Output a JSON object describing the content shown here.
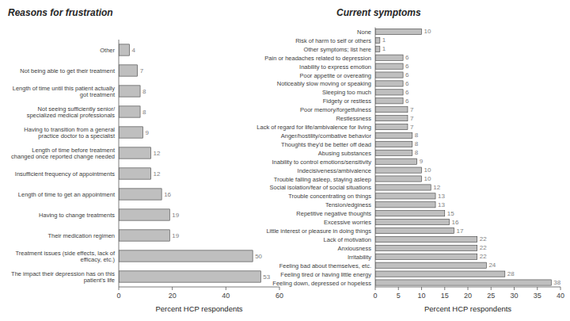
{
  "chart_data": [
    {
      "type": "bar",
      "orientation": "horizontal",
      "title": "Reasons for frustration",
      "categories": [
        "Other",
        "Not being able to get their treatment",
        "Length of time until this patient actually got treatment",
        "Not seeing sufficiently senior/ specialized medical professionals",
        "Having to transition from a general practice doctor to a specialist",
        "Length of time before treatment changed once reported change needed",
        "Insufficient frequency of appointments",
        "Length of time to get an appointment",
        "Having to change treatments",
        "Their medication regimen",
        "Treatment issues (side effects, lack of efficacy, etc.)",
        "The impact their depression has on this patient's life"
      ],
      "values": [
        4,
        7,
        8,
        8,
        9,
        12,
        12,
        16,
        19,
        19,
        50,
        53
      ],
      "color": "#bfbfbf",
      "xlabel": "Percent HCP respondents",
      "xlim": [
        0,
        60
      ],
      "xticks": [
        0,
        20,
        40,
        60
      ],
      "grid": false,
      "data_labels": true
    },
    {
      "type": "bar",
      "orientation": "horizontal",
      "title": "Current symptoms",
      "categories": [
        "None",
        "Risk of harm to self or others",
        "Other symptoms; list here",
        "Pain or headaches related to depression",
        "Inability to express emotion",
        "Poor appetite or overeating",
        "Noticeably slow moving or speaking",
        "Sleeping too much",
        "Fidgety or restless",
        "Poor memory/forgetfulness",
        "Restlessness",
        "Lack of regard for life/ambivalence for living",
        "Anger/hostility/combative behavior",
        "Thoughts they'd be better off dead",
        "Abusing substances",
        "Inability to control emotions/sensitivity",
        "Indecisiveness/ambivalence",
        "Trouble falling asleep, staying asleep",
        "Social isolation/fear of social situations",
        "Trouble concentrating on things",
        "Tension/edginess",
        "Repetitive negative thoughts",
        "Excessive worries",
        "Little interest or pleasure in doing things",
        "Lack of motivation",
        "Anxiousness",
        "Irritability",
        "Feeling bad about themselves, etc.",
        "Feeling tired or having little energy",
        "Feeling down, depressed or hopeless"
      ],
      "values": [
        10,
        1,
        1,
        6,
        6,
        6,
        6,
        6,
        6,
        7,
        7,
        7,
        8,
        8,
        8,
        9,
        10,
        10,
        12,
        13,
        13,
        15,
        16,
        17,
        22,
        22,
        22,
        24,
        28,
        38
      ],
      "color": "#bfbfbf",
      "xlabel": "Percent HCP respondents",
      "xlim": [
        0,
        40
      ],
      "xticks": [
        0,
        5,
        10,
        15,
        20,
        25,
        30,
        35,
        40
      ],
      "grid": false,
      "data_labels": true
    }
  ]
}
